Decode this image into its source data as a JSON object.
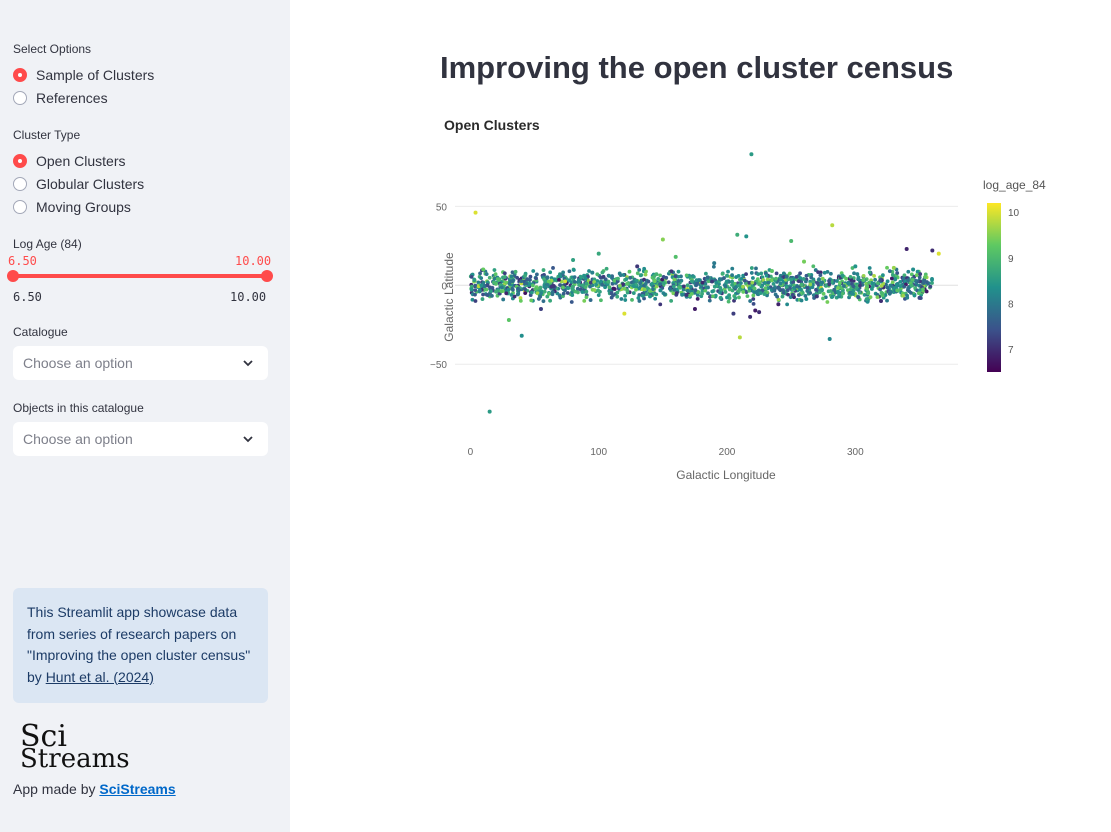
{
  "sidebar": {
    "select_options": {
      "label": "Select Options",
      "options": [
        "Sample of Clusters",
        "References"
      ],
      "selected": 0
    },
    "cluster_type": {
      "label": "Cluster Type",
      "options": [
        "Open Clusters",
        "Globular Clusters",
        "Moving Groups"
      ],
      "selected": 0
    },
    "log_age_slider": {
      "label": "Log Age (84)",
      "low": "6.50",
      "high": "10.00",
      "min_label": "6.50",
      "max_label": "10.00"
    },
    "catalogue": {
      "label": "Catalogue",
      "placeholder": "Choose an option"
    },
    "objects": {
      "label": "Objects in this catalogue",
      "placeholder": "Choose an option"
    },
    "info": {
      "text": "This Streamlit app showcase data from series of research papers on \"Improving the open cluster census\" by ",
      "link_text": "Hunt et al. (2024)"
    },
    "logo_top": "Sci",
    "logo_bottom": "Streams",
    "footer_prefix": "App made by ",
    "footer_link": "SciStreams"
  },
  "main": {
    "title": "Improving the open cluster census"
  },
  "colors": {
    "accent": "#ff4b4b",
    "sidebar_bg": "#f0f2f6",
    "info_bg": "#dbe6f3",
    "link": "#0068c9"
  },
  "chart_data": {
    "type": "scatter",
    "title": "Open Clusters",
    "xlabel": "Galactic Longitude",
    "ylabel": "Galactic Latitude",
    "xlim": [
      -12,
      380
    ],
    "ylim": [
      -98,
      92
    ],
    "x_ticks": [
      0,
      100,
      200,
      300
    ],
    "y_ticks": [
      50,
      0,
      -50
    ],
    "grid": true,
    "colorbar": {
      "title": "log_age_84",
      "range": [
        6.5,
        10.2
      ],
      "ticks": [
        10,
        9,
        8,
        7
      ],
      "colorscale": "viridis"
    },
    "series": [
      {
        "x": [
          219,
          4,
          208,
          282,
          150,
          210,
          15,
          40,
          280,
          250,
          100,
          120,
          340,
          360,
          365,
          10,
          30,
          55,
          80,
          130,
          160,
          175,
          190,
          225,
          240,
          260,
          300,
          320,
          330,
          350,
          215,
          218,
          222,
          205,
          70,
          95,
          110,
          145,
          165,
          185,
          195,
          235,
          270,
          290,
          310,
          345,
          20,
          60,
          140,
          200
        ],
        "y": [
          83,
          46,
          32,
          38,
          29,
          -33,
          -80,
          -32,
          -34,
          28,
          20,
          -18,
          23,
          22,
          20,
          10,
          -22,
          -15,
          16,
          12,
          18,
          -15,
          14,
          -17,
          -12,
          15,
          12,
          -10,
          11,
          -8,
          31,
          -20,
          -16,
          -18,
          6,
          8,
          -5,
          7,
          -6,
          5,
          -8,
          9,
          -7,
          6,
          -5,
          10,
          -4,
          5,
          -7,
          6
        ],
        "log_age": [
          8.5,
          10.0,
          8.8,
          9.8,
          9.5,
          9.8,
          8.5,
          8.3,
          8.2,
          9.0,
          8.7,
          10.0,
          6.9,
          7.0,
          10.0,
          9.3,
          9.2,
          7.2,
          8.6,
          7.1,
          9.1,
          6.8,
          8.0,
          7.0,
          6.9,
          9.4,
          8.4,
          7.0,
          9.6,
          7.3,
          8.4,
          7.0,
          6.8,
          7.2,
          8.3,
          8.1,
          7.5,
          8.9,
          8.2,
          7.8,
          8.6,
          9.2,
          7.1,
          8.5,
          9.0,
          8.3,
          8.8,
          7.9,
          8.4,
          8.6
        ]
      }
    ]
  }
}
